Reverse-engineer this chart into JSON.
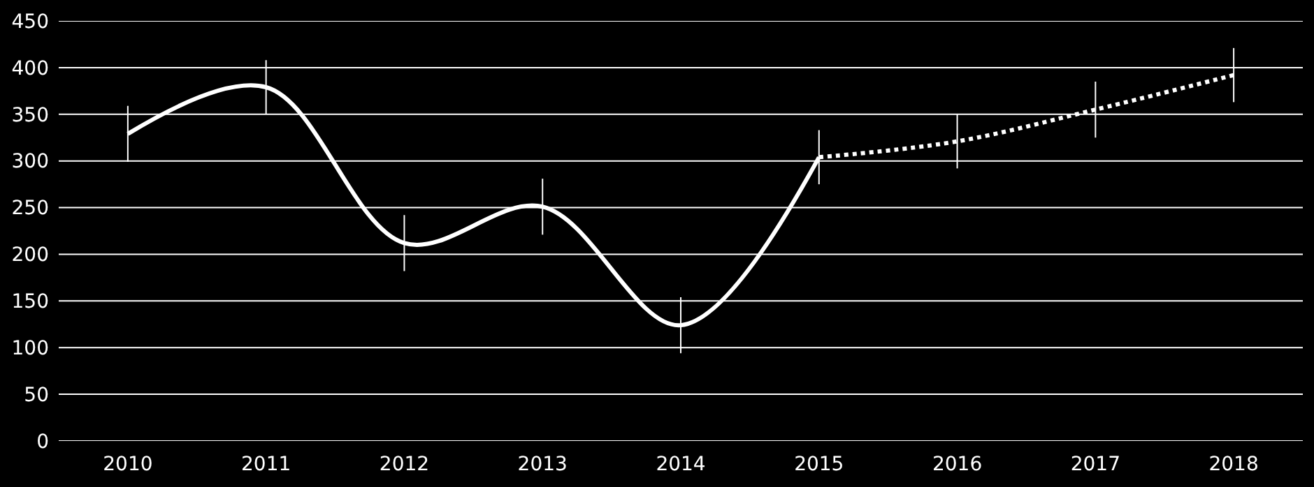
{
  "chart_data": {
    "type": "line",
    "categories": [
      "2010",
      "2011",
      "2012",
      "2013",
      "2014",
      "2015",
      "2016",
      "2017",
      "2018"
    ],
    "series": [
      {
        "color": "#ffffff",
        "line_style": "solid",
        "values": [
          329,
          379,
          212,
          251,
          124,
          304,
          null,
          null,
          null
        ],
        "errors": [
          30,
          29,
          30,
          30,
          30,
          29,
          null,
          null,
          null
        ]
      },
      {
        "color": "#ffffff",
        "line_style": "dotted",
        "values": [
          null,
          null,
          null,
          null,
          null,
          304,
          321,
          355,
          392
        ],
        "errors": [
          null,
          null,
          null,
          null,
          null,
          null,
          29,
          30,
          29
        ]
      }
    ],
    "ylim": [
      0,
      450
    ],
    "yticks": [
      0,
      50,
      100,
      150,
      200,
      250,
      300,
      350,
      400,
      450
    ],
    "grid": "y",
    "marker": "none"
  }
}
